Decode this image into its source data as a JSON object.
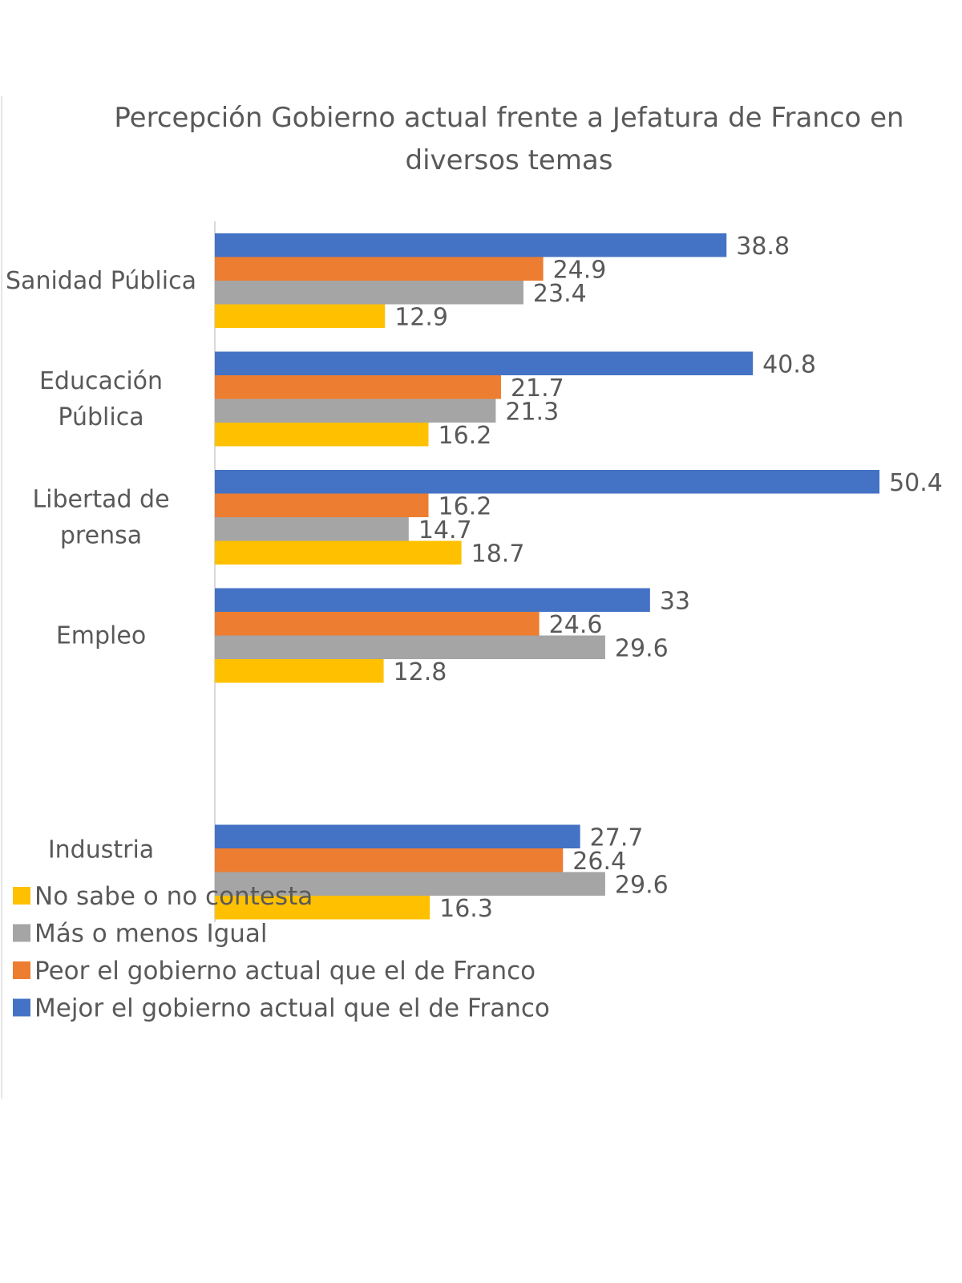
{
  "chart_data": {
    "type": "bar",
    "orientation": "horizontal",
    "title": "Percepción Gobierno actual frente a Jefatura de Franco en diversos temas",
    "title_lines": [
      "Percepción Gobierno actual frente a Jefatura de Franco en",
      "diversos temas"
    ],
    "categories": [
      "Sanidad Pública",
      "Educación Pública",
      "Libertad de prensa",
      "Empleo",
      "",
      "Industria"
    ],
    "category_lines": [
      [
        "Sanidad Pública"
      ],
      [
        "Educación",
        "Pública"
      ],
      [
        "Libertad de",
        "prensa"
      ],
      [
        "Empleo"
      ],
      [],
      [
        "Industria"
      ]
    ],
    "series": [
      {
        "name": "Mejor el gobierno actual que el de Franco",
        "color": "#4472C4",
        "values": [
          38.8,
          40.8,
          50.4,
          33,
          null,
          27.7
        ]
      },
      {
        "name": "Peor el gobierno actual que el de Franco",
        "color": "#ED7D31",
        "values": [
          24.9,
          21.7,
          16.2,
          24.6,
          null,
          26.4
        ]
      },
      {
        "name": "Más o menos Igual",
        "color": "#A5A5A5",
        "values": [
          23.4,
          21.3,
          14.7,
          29.6,
          null,
          29.6
        ]
      },
      {
        "name": "No sabe o no contesta",
        "color": "#FFC000",
        "values": [
          12.9,
          16.2,
          18.7,
          12.8,
          null,
          16.3
        ]
      }
    ],
    "legend": {
      "placement": "bottom-left",
      "order": [
        "No sabe o no contesta",
        "Más o menos Igual",
        "Peor el gobierno actual que el de Franco",
        "Mejor el gobierno actual que el de Franco"
      ]
    },
    "data_labels": true,
    "grid": false,
    "xlim": [
      0,
      50.4
    ]
  }
}
